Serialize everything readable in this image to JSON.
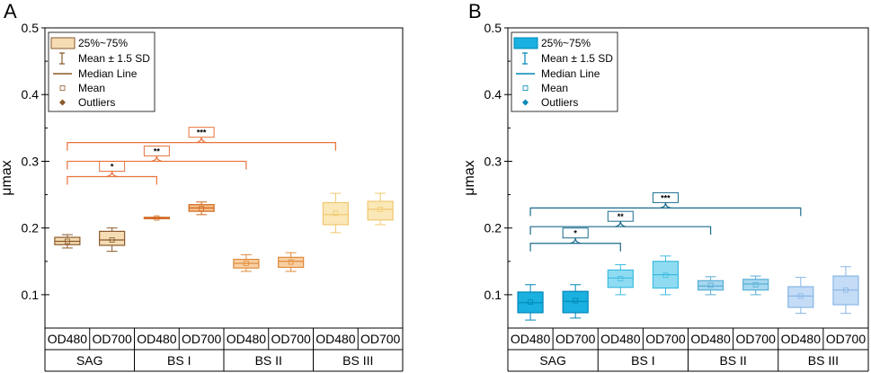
{
  "figure": {
    "label_font_px": 14,
    "panels": [
      "A",
      "B"
    ]
  },
  "chart_data": [
    {
      "type": "box",
      "panel_label": "A",
      "ylabel": "μmax",
      "ylim": [
        0.05,
        0.5
      ],
      "yticks": [
        0.1,
        0.2,
        0.3,
        0.4,
        0.5
      ],
      "ytick_labels": [
        "0.1",
        "0.2",
        "0.3",
        "0.4",
        "0.5"
      ],
      "categories": [
        "OD480",
        "OD700",
        "OD480",
        "OD700",
        "OD480",
        "OD700",
        "OD480",
        "OD700"
      ],
      "groups": [
        "SAG",
        "BS I",
        "BS II",
        "BS III"
      ],
      "boxes": [
        {
          "group": "SAG",
          "label": "OD480",
          "q1": 0.175,
          "median": 0.18,
          "q3": 0.186,
          "mean": 0.18,
          "lo": 0.17,
          "hi": 0.19,
          "color": "#8a5a2b",
          "fill": "#f5dcb4"
        },
        {
          "group": "SAG",
          "label": "OD700",
          "q1": 0.174,
          "median": 0.182,
          "q3": 0.195,
          "mean": 0.182,
          "lo": 0.165,
          "hi": 0.2,
          "color": "#8a5a2b",
          "fill": "#f5dcb4"
        },
        {
          "group": "BS I",
          "label": "OD480",
          "q1": 0.215,
          "median": 0.215,
          "q3": 0.216,
          "mean": 0.215,
          "lo": 0.215,
          "hi": 0.216,
          "color": "#d2691e",
          "fill": "#f5c08a"
        },
        {
          "group": "BS I",
          "label": "OD700",
          "q1": 0.225,
          "median": 0.23,
          "q3": 0.235,
          "mean": 0.229,
          "lo": 0.22,
          "hi": 0.239,
          "color": "#d2691e",
          "fill": "#f5c08a"
        },
        {
          "group": "BS II",
          "label": "OD480",
          "q1": 0.14,
          "median": 0.147,
          "q3": 0.153,
          "mean": 0.147,
          "lo": 0.135,
          "hi": 0.16,
          "color": "#e08a3c",
          "fill": "#f8d0a4"
        },
        {
          "group": "BS II",
          "label": "OD700",
          "q1": 0.141,
          "median": 0.15,
          "q3": 0.156,
          "mean": 0.149,
          "lo": 0.135,
          "hi": 0.163,
          "color": "#e08a3c",
          "fill": "#f8d0a4"
        },
        {
          "group": "BS III",
          "label": "OD480",
          "q1": 0.205,
          "median": 0.22,
          "q3": 0.238,
          "mean": 0.222,
          "lo": 0.193,
          "hi": 0.252,
          "color": "#f0c86e",
          "fill": "#fbe8b8"
        },
        {
          "group": "BS III",
          "label": "OD700",
          "q1": 0.212,
          "median": 0.228,
          "q3": 0.24,
          "mean": 0.228,
          "lo": 0.205,
          "hi": 0.252,
          "color": "#f0c86e",
          "fill": "#fbe8b8"
        }
      ],
      "significance": [
        {
          "label": "*",
          "from": 0,
          "to": 2,
          "y": 0.277
        },
        {
          "label": "**",
          "from": 0,
          "to": 4,
          "y": 0.3
        },
        {
          "label": "***",
          "from": 0,
          "to": 6,
          "y": 0.328
        }
      ],
      "sig_color": "#e8733c",
      "legend": {
        "placement": "top-left",
        "entries": [
          "25%~75%",
          "Mean ± 1.5 SD",
          "Median Line",
          "Mean",
          "Outliers"
        ],
        "color": "#8a5a2b",
        "fill": "#f5dcb4"
      }
    },
    {
      "type": "box",
      "panel_label": "B",
      "ylabel": "μmax",
      "ylim": [
        0.05,
        0.5
      ],
      "yticks": [
        0.1,
        0.2,
        0.3,
        0.4,
        0.5
      ],
      "ytick_labels": [
        "0.1",
        "0.2",
        "0.3",
        "0.4",
        "0.5"
      ],
      "categories": [
        "OD480",
        "OD700",
        "OD480",
        "OD700",
        "OD480",
        "OD700",
        "OD480",
        "OD700"
      ],
      "groups": [
        "SAG",
        "BS I",
        "BS II",
        "BS III"
      ],
      "boxes": [
        {
          "group": "SAG",
          "label": "OD480",
          "q1": 0.073,
          "median": 0.088,
          "q3": 0.104,
          "mean": 0.089,
          "lo": 0.062,
          "hi": 0.115,
          "color": "#0088b8",
          "fill": "#1ab0e0"
        },
        {
          "group": "SAG",
          "label": "OD700",
          "q1": 0.073,
          "median": 0.09,
          "q3": 0.105,
          "mean": 0.091,
          "lo": 0.065,
          "hi": 0.115,
          "color": "#0088b8",
          "fill": "#1ab0e0"
        },
        {
          "group": "BS I",
          "label": "OD480",
          "q1": 0.111,
          "median": 0.125,
          "q3": 0.137,
          "mean": 0.124,
          "lo": 0.1,
          "hi": 0.145,
          "color": "#3bbbe0",
          "fill": "#8fdcf2"
        },
        {
          "group": "BS I",
          "label": "OD700",
          "q1": 0.11,
          "median": 0.13,
          "q3": 0.15,
          "mean": 0.129,
          "lo": 0.1,
          "hi": 0.158,
          "color": "#3bbbe0",
          "fill": "#8fdcf2"
        },
        {
          "group": "BS II",
          "label": "OD480",
          "q1": 0.107,
          "median": 0.113,
          "q3": 0.121,
          "mean": 0.114,
          "lo": 0.1,
          "hi": 0.127,
          "color": "#5aaed6",
          "fill": "#a6d8f0"
        },
        {
          "group": "BS II",
          "label": "OD700",
          "q1": 0.107,
          "median": 0.116,
          "q3": 0.123,
          "mean": 0.115,
          "lo": 0.1,
          "hi": 0.128,
          "color": "#5aaed6",
          "fill": "#a6d8f0"
        },
        {
          "group": "BS III",
          "label": "OD480",
          "q1": 0.081,
          "median": 0.098,
          "q3": 0.112,
          "mean": 0.098,
          "lo": 0.072,
          "hi": 0.126,
          "color": "#88b6e6",
          "fill": "#c4dcf6"
        },
        {
          "group": "BS III",
          "label": "OD700",
          "q1": 0.085,
          "median": 0.107,
          "q3": 0.128,
          "mean": 0.107,
          "lo": 0.072,
          "hi": 0.142,
          "color": "#88b6e6",
          "fill": "#c4dcf6"
        }
      ],
      "significance": [
        {
          "label": "*",
          "from": 0,
          "to": 2,
          "y": 0.177
        },
        {
          "label": "**",
          "from": 0,
          "to": 4,
          "y": 0.202
        },
        {
          "label": "***",
          "from": 0,
          "to": 6,
          "y": 0.23
        }
      ],
      "sig_color": "#1a6b8c",
      "legend": {
        "placement": "top-left",
        "entries": [
          "25%~75%",
          "Mean ± 1.5 SD",
          "Median Line",
          "Mean",
          "Outliers"
        ],
        "color": "#0088b8",
        "fill": "#1ab0e0"
      }
    }
  ]
}
